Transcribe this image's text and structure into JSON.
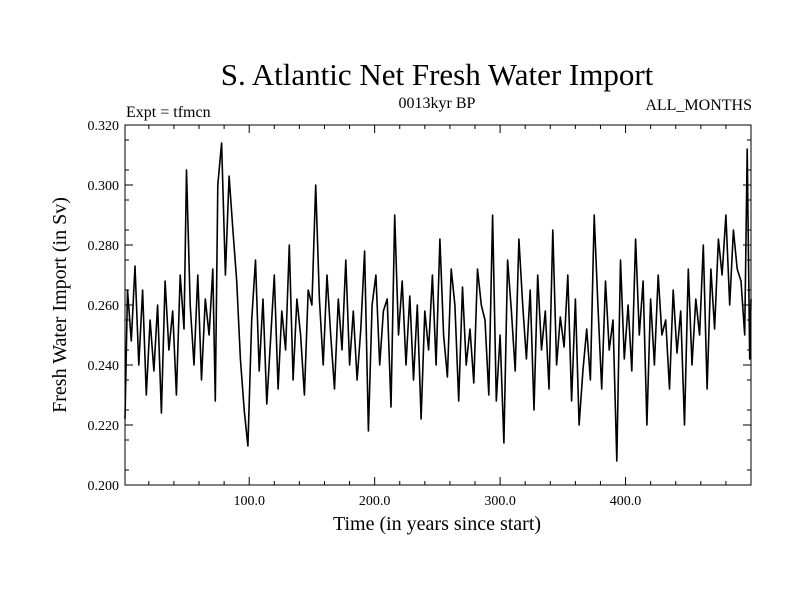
{
  "chart_data": {
    "type": "line",
    "title": "S. Atlantic Net Fresh Water Import",
    "subtitle": "0013kyr BP",
    "left_label": "Expt = tfmcn",
    "right_label": "ALL_MONTHS",
    "xlabel": "Time (in years since start)",
    "ylabel": "Fresh Water Import (in Sv)",
    "xlim": [
      1,
      500
    ],
    "ylim": [
      0.2,
      0.32
    ],
    "x_ticks": [
      100,
      200,
      300,
      400
    ],
    "x_tick_labels": [
      "100.0",
      "200.0",
      "300.0",
      "400.0"
    ],
    "y_ticks": [
      0.2,
      0.22,
      0.24,
      0.26,
      0.28,
      0.3,
      0.32
    ],
    "y_tick_labels": [
      "0.200",
      "0.220",
      "0.240",
      "0.260",
      "0.280",
      "0.300",
      "0.320"
    ],
    "grid": false,
    "line_color": "#000000",
    "series": [
      {
        "x": [
          1,
          3,
          6,
          9,
          12,
          15,
          18,
          21,
          24,
          27,
          30,
          33,
          36,
          39,
          42,
          45,
          48,
          50,
          53,
          56,
          59,
          62,
          65,
          68,
          71,
          73,
          75,
          78,
          81,
          84,
          87,
          90,
          93,
          96,
          99,
          102,
          105,
          108,
          111,
          114,
          117,
          120,
          123,
          126,
          129,
          132,
          135,
          138,
          141,
          144,
          147,
          150,
          153,
          156,
          159,
          162,
          165,
          168,
          171,
          174,
          177,
          180,
          183,
          186,
          189,
          192,
          195,
          198,
          201,
          204,
          207,
          210,
          213,
          216,
          219,
          222,
          225,
          228,
          231,
          234,
          237,
          240,
          243,
          246,
          249,
          252,
          255,
          258,
          261,
          264,
          267,
          270,
          273,
          276,
          279,
          282,
          285,
          288,
          291,
          294,
          297,
          300,
          303,
          306,
          309,
          312,
          315,
          318,
          321,
          324,
          327,
          330,
          333,
          336,
          339,
          342,
          345,
          348,
          351,
          354,
          357,
          360,
          363,
          366,
          369,
          372,
          375,
          378,
          381,
          384,
          387,
          390,
          393,
          396,
          399,
          402,
          405,
          408,
          411,
          414,
          417,
          420,
          423,
          426,
          429,
          432,
          435,
          438,
          441,
          444,
          447,
          450,
          453,
          456,
          459,
          462,
          465,
          468,
          471,
          474,
          477,
          480,
          483,
          486,
          489,
          492,
          495,
          497,
          499,
          500
        ],
        "values": [
          0.222,
          0.265,
          0.248,
          0.273,
          0.24,
          0.265,
          0.23,
          0.255,
          0.238,
          0.26,
          0.224,
          0.268,
          0.245,
          0.258,
          0.23,
          0.27,
          0.252,
          0.305,
          0.26,
          0.24,
          0.27,
          0.235,
          0.262,
          0.25,
          0.272,
          0.228,
          0.3,
          0.314,
          0.27,
          0.303,
          0.285,
          0.268,
          0.242,
          0.225,
          0.213,
          0.255,
          0.275,
          0.238,
          0.262,
          0.227,
          0.248,
          0.27,
          0.232,
          0.258,
          0.245,
          0.28,
          0.235,
          0.262,
          0.25,
          0.23,
          0.265,
          0.26,
          0.3,
          0.262,
          0.24,
          0.27,
          0.25,
          0.232,
          0.262,
          0.245,
          0.275,
          0.24,
          0.258,
          0.235,
          0.252,
          0.278,
          0.218,
          0.26,
          0.27,
          0.24,
          0.258,
          0.262,
          0.226,
          0.29,
          0.25,
          0.268,
          0.24,
          0.263,
          0.235,
          0.26,
          0.222,
          0.258,
          0.245,
          0.27,
          0.24,
          0.282,
          0.25,
          0.236,
          0.272,
          0.26,
          0.228,
          0.266,
          0.24,
          0.252,
          0.234,
          0.272,
          0.26,
          0.255,
          0.23,
          0.29,
          0.228,
          0.25,
          0.214,
          0.275,
          0.258,
          0.238,
          0.282,
          0.26,
          0.242,
          0.265,
          0.225,
          0.27,
          0.245,
          0.258,
          0.232,
          0.285,
          0.24,
          0.256,
          0.246,
          0.27,
          0.228,
          0.262,
          0.22,
          0.238,
          0.252,
          0.235,
          0.29,
          0.26,
          0.232,
          0.268,
          0.245,
          0.255,
          0.208,
          0.275,
          0.242,
          0.26,
          0.238,
          0.282,
          0.25,
          0.268,
          0.22,
          0.262,
          0.24,
          0.27,
          0.25,
          0.255,
          0.232,
          0.265,
          0.244,
          0.258,
          0.22,
          0.272,
          0.24,
          0.262,
          0.25,
          0.28,
          0.232,
          0.272,
          0.252,
          0.282,
          0.27,
          0.29,
          0.26,
          0.285,
          0.272,
          0.268,
          0.25,
          0.312,
          0.242,
          0.262
        ]
      }
    ]
  }
}
